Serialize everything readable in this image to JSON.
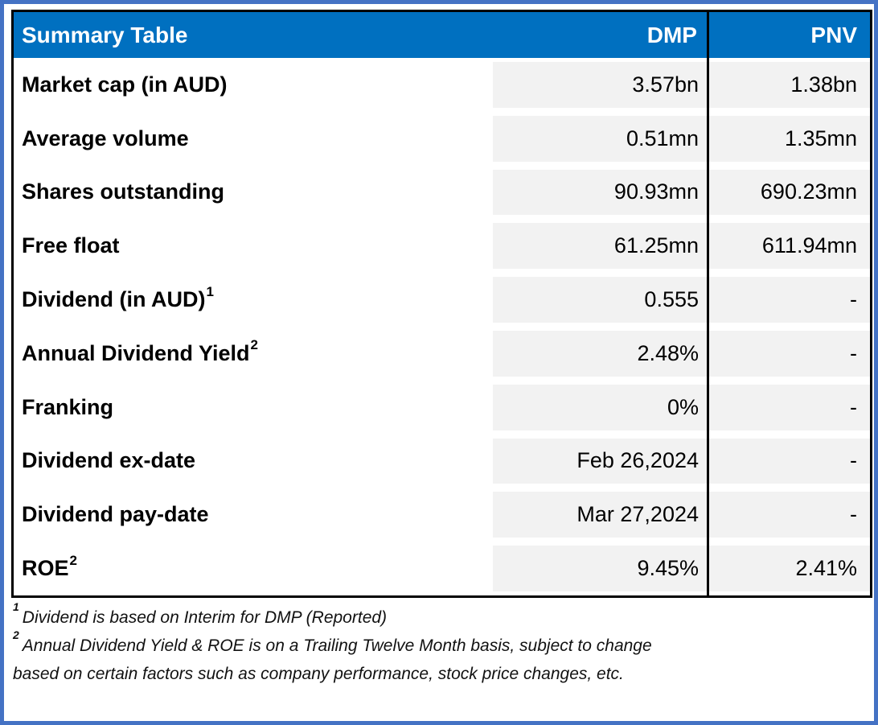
{
  "table": {
    "title": "Summary Table",
    "columns": [
      "DMP",
      "PNV"
    ],
    "rows": [
      {
        "label": "Market cap (in AUD)",
        "sup": "",
        "dmp": "3.57bn",
        "pnv": "1.38bn"
      },
      {
        "label": "Average volume",
        "sup": "",
        "dmp": "0.51mn",
        "pnv": "1.35mn"
      },
      {
        "label": "Shares outstanding",
        "sup": "",
        "dmp": "90.93mn",
        "pnv": "690.23mn"
      },
      {
        "label": "Free float",
        "sup": "",
        "dmp": "61.25mn",
        "pnv": "611.94mn"
      },
      {
        "label": "Dividend (in AUD)",
        "sup": "1",
        "dmp": "0.555",
        "pnv": "-"
      },
      {
        "label": "Annual Dividend Yield",
        "sup": "2",
        "dmp": "2.48%",
        "pnv": "-"
      },
      {
        "label": "Franking",
        "sup": "",
        "dmp": "0%",
        "pnv": "-"
      },
      {
        "label": "Dividend ex-date",
        "sup": "",
        "dmp": "Feb 26,2024",
        "pnv": "-"
      },
      {
        "label": "Dividend pay-date",
        "sup": "",
        "dmp": "Mar 27,2024",
        "pnv": "-"
      },
      {
        "label": "ROE",
        "sup": "2",
        "dmp": "9.45%",
        "pnv": "2.41%"
      }
    ]
  },
  "footnotes": [
    {
      "sup": "1",
      "text": "Dividend is based on Interim for DMP (Reported)"
    },
    {
      "sup": "2",
      "text": "Annual Dividend Yield & ROE is on a Trailing Twelve Month basis, subject to change based on certain factors such as company performance, stock price changes, etc."
    }
  ],
  "colors": {
    "header_bg": "#0070C0",
    "frame": "#4472C4",
    "cell_bg": "#F2F2F2",
    "border": "#000000"
  }
}
